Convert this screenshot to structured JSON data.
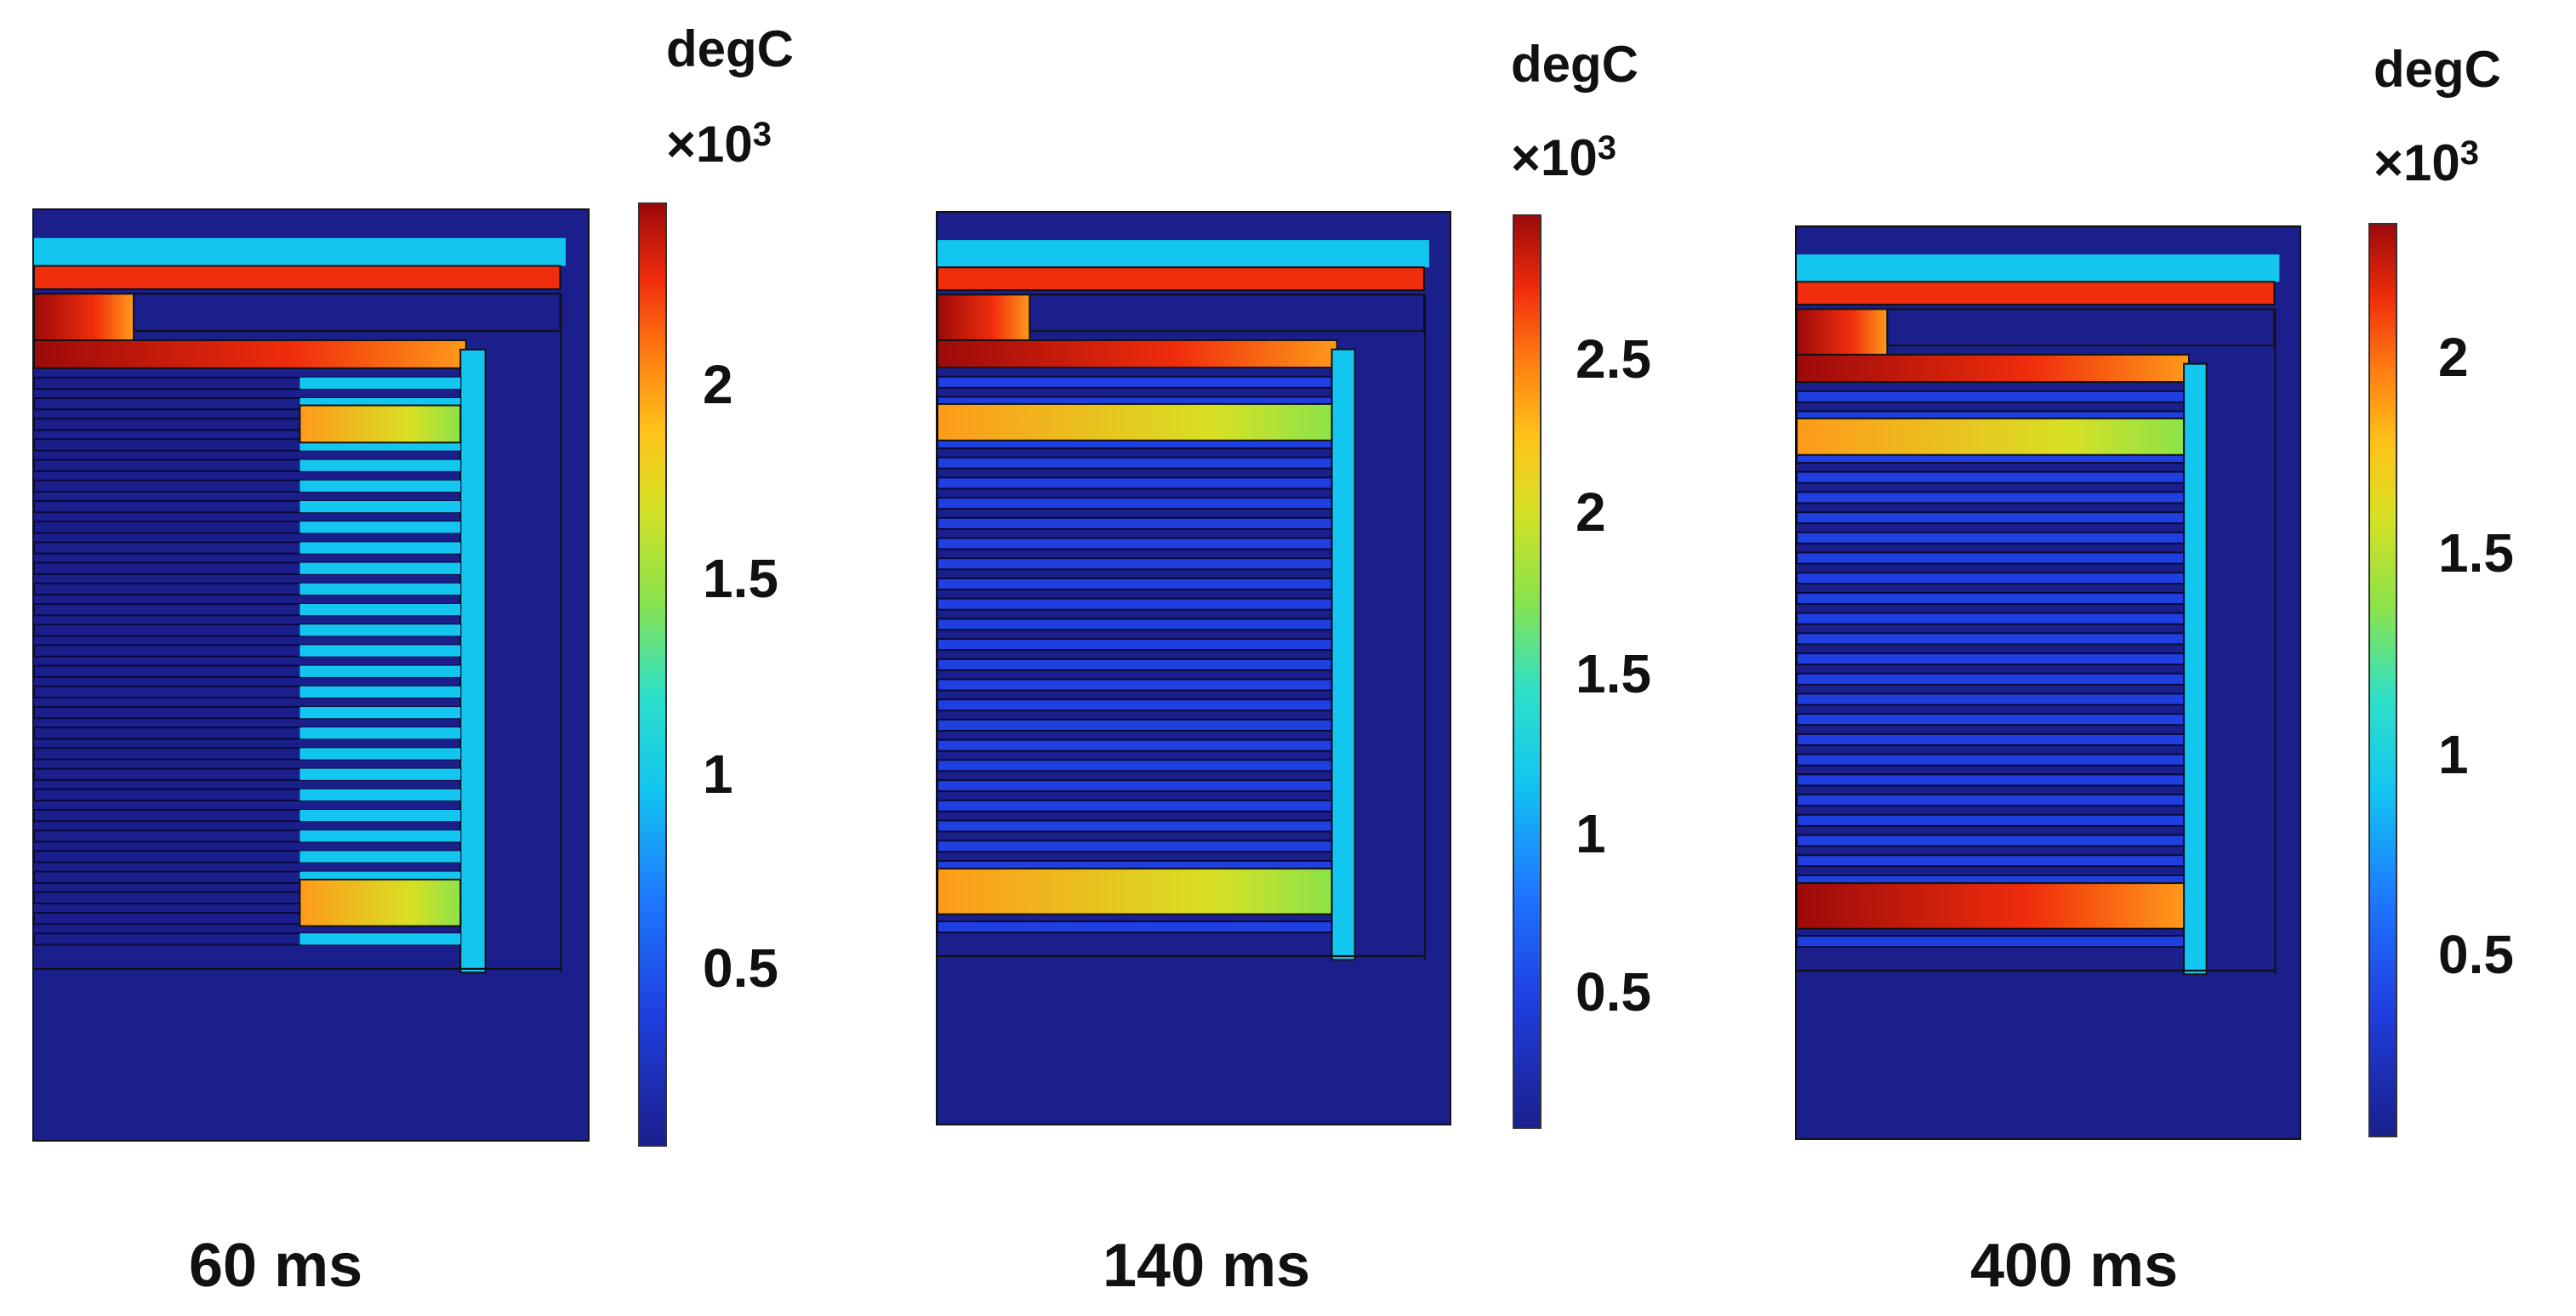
{
  "panels": [
    {
      "caption": "60 ms",
      "unit": "degC",
      "exponent_prefix": "×10",
      "exponent_power": "3",
      "ticks": [
        "2",
        "1.5",
        "1",
        "0.5"
      ],
      "max_label_value_degC": 2400,
      "hot_fraction": 0.18
    },
    {
      "caption": "140 ms",
      "unit": "degC",
      "exponent_prefix": "×10",
      "exponent_power": "3",
      "ticks": [
        "2.5",
        "2",
        "1.5",
        "1",
        "0.5"
      ],
      "max_label_value_degC": 2900,
      "hot_fraction": 0.55
    },
    {
      "caption": "400 ms",
      "unit": "degC",
      "exponent_prefix": "×10",
      "exponent_power": "3",
      "ticks": [
        "2",
        "1.5",
        "1",
        "0.5"
      ],
      "max_label_value_degC": 2400,
      "hot_fraction": 1.0
    }
  ],
  "colors": {
    "background": "#1a1f8c",
    "cold_layer": "#1f3fe0",
    "warm_layer": "#12c6f0",
    "hot": "#f02d0c",
    "very_hot": "#9c0a0a",
    "orange": "#ff9a1a",
    "yellow": "#d8e024",
    "green": "#8be34a"
  }
}
